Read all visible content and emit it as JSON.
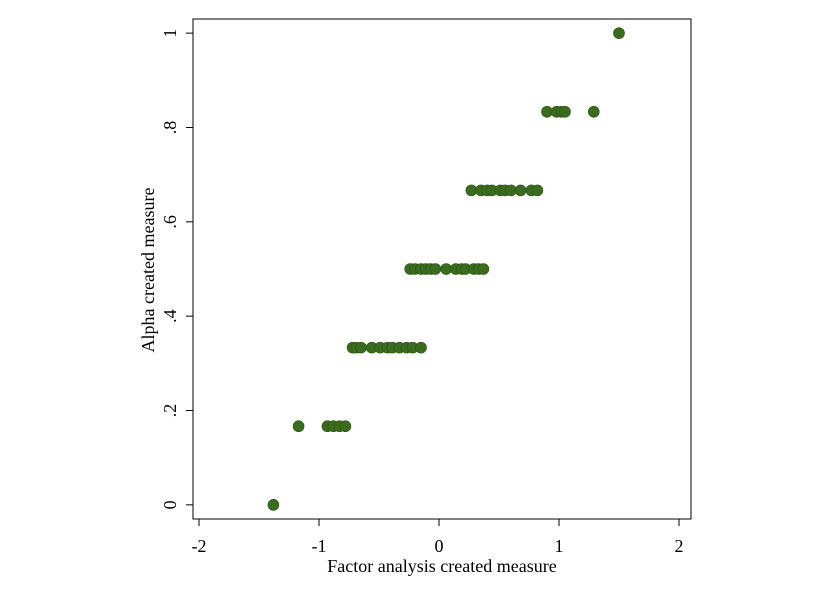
{
  "chart_data": {
    "type": "scatter",
    "title": "",
    "xlabel": "Factor analysis created measure",
    "ylabel": "Alpha created measure",
    "xlim": [
      -2.05,
      2.1
    ],
    "ylim": [
      -0.03,
      1.03
    ],
    "xticks": [
      -2,
      -1,
      0,
      1,
      2
    ],
    "xtick_labels": [
      "-2",
      "-1",
      "0",
      "1",
      "2"
    ],
    "yticks": [
      0,
      0.2,
      0.4,
      0.6,
      0.8,
      1
    ],
    "ytick_labels": [
      "0",
      ".2",
      ".4",
      ".6",
      ".8",
      "1"
    ],
    "grid": false,
    "legend": "none",
    "marker_color": "#3a6b1e",
    "series": [
      {
        "points": [
          [
            -1.38,
            0
          ],
          [
            -1.17,
            0.1667
          ],
          [
            -0.93,
            0.1667
          ],
          [
            -0.88,
            0.1667
          ],
          [
            -0.83,
            0.1667
          ],
          [
            -0.78,
            0.1667
          ],
          [
            -0.72,
            0.3333
          ],
          [
            -0.69,
            0.3333
          ],
          [
            -0.65,
            0.3333
          ],
          [
            -0.56,
            0.3333
          ],
          [
            -0.49,
            0.3333
          ],
          [
            -0.43,
            0.3333
          ],
          [
            -0.39,
            0.3333
          ],
          [
            -0.33,
            0.3333
          ],
          [
            -0.27,
            0.3333
          ],
          [
            -0.22,
            0.3333
          ],
          [
            -0.15,
            0.3333
          ],
          [
            -0.24,
            0.5
          ],
          [
            -0.2,
            0.5
          ],
          [
            -0.15,
            0.5
          ],
          [
            -0.11,
            0.5
          ],
          [
            -0.07,
            0.5
          ],
          [
            -0.03,
            0.5
          ],
          [
            0.06,
            0.5
          ],
          [
            0.14,
            0.5
          ],
          [
            0.19,
            0.5
          ],
          [
            0.22,
            0.5
          ],
          [
            0.29,
            0.5
          ],
          [
            0.33,
            0.5
          ],
          [
            0.37,
            0.5
          ],
          [
            0.27,
            0.6667
          ],
          [
            0.35,
            0.6667
          ],
          [
            0.4,
            0.6667
          ],
          [
            0.44,
            0.6667
          ],
          [
            0.51,
            0.6667
          ],
          [
            0.55,
            0.6667
          ],
          [
            0.6,
            0.6667
          ],
          [
            0.68,
            0.6667
          ],
          [
            0.77,
            0.6667
          ],
          [
            0.82,
            0.6667
          ],
          [
            0.9,
            0.8333
          ],
          [
            0.98,
            0.8333
          ],
          [
            1.02,
            0.8333
          ],
          [
            1.05,
            0.8333
          ],
          [
            1.29,
            0.8333
          ],
          [
            1.5,
            1
          ]
        ]
      }
    ]
  }
}
